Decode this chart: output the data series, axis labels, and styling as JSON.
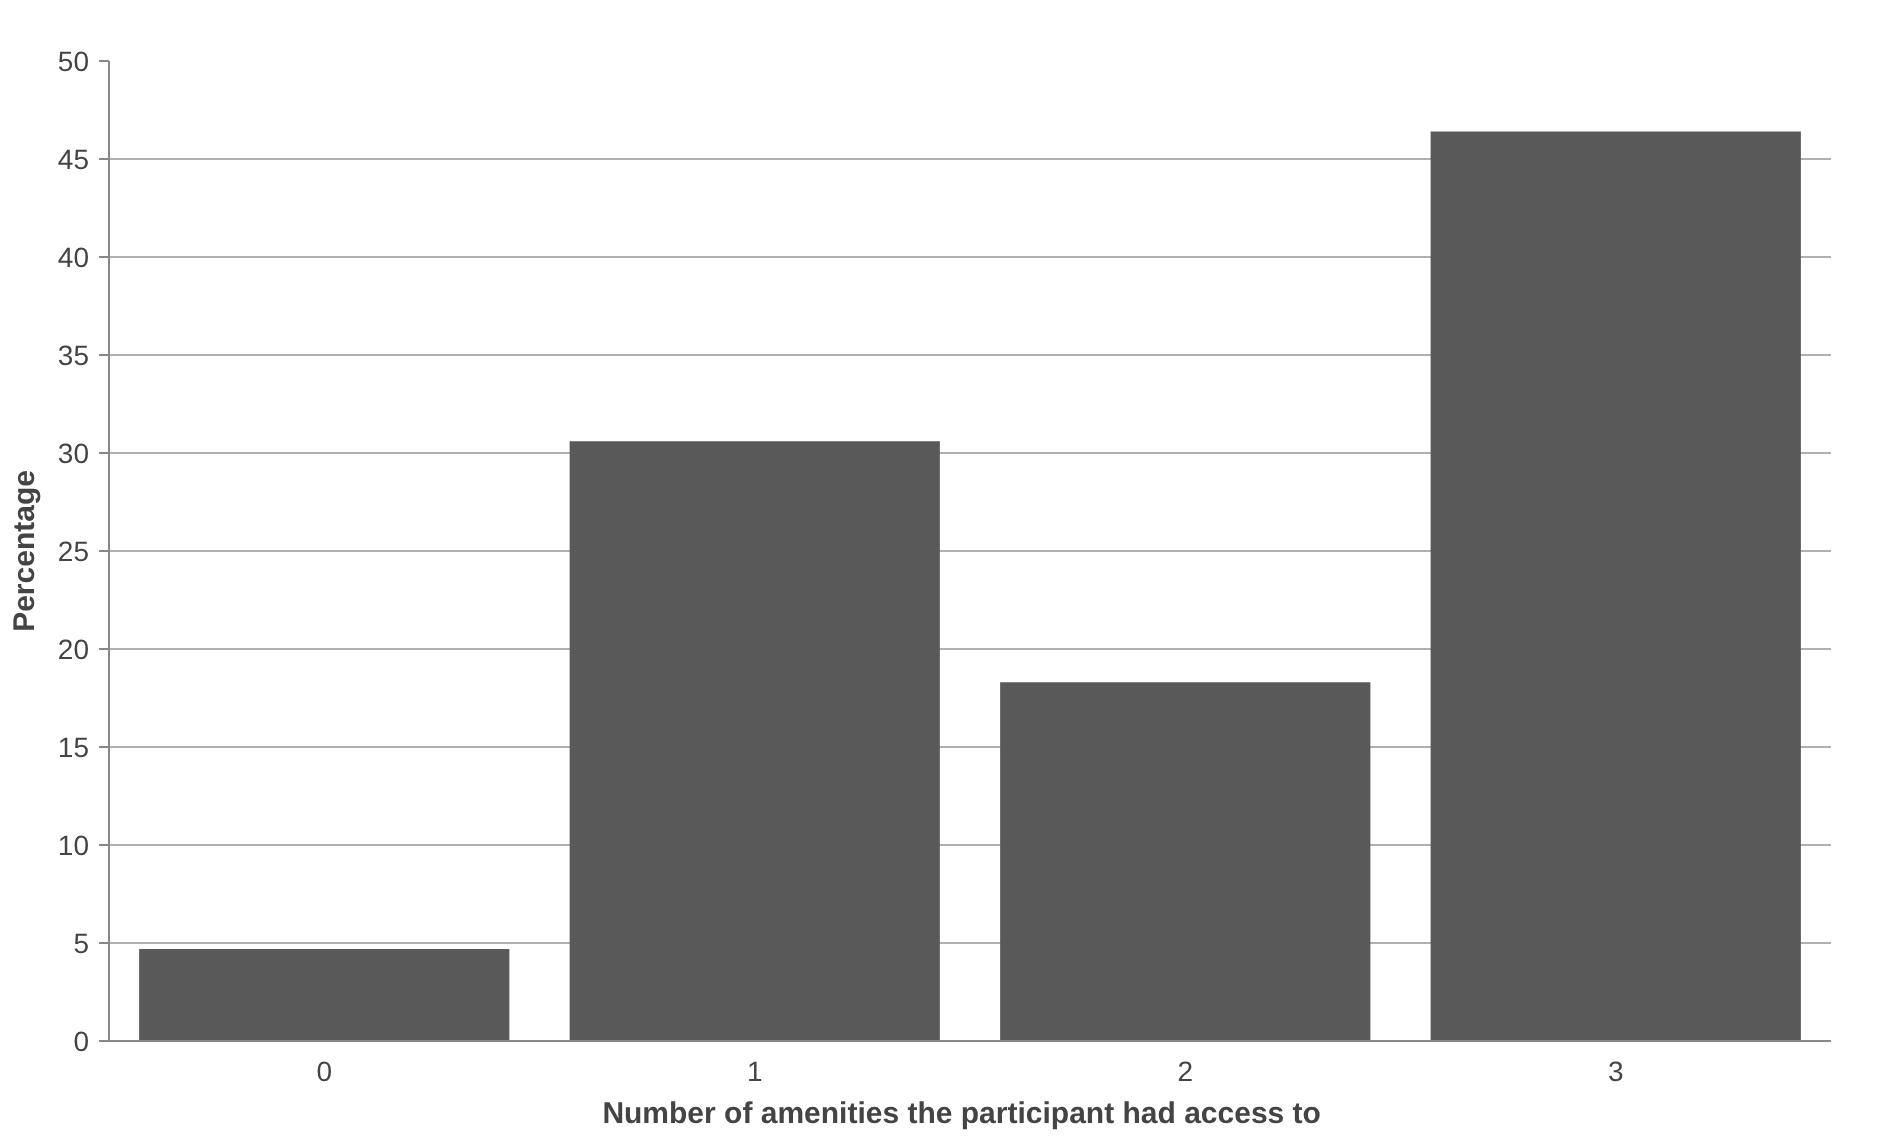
{
  "chart_data": {
    "type": "bar",
    "xlabel": "Number of amenities the participant  had access  to",
    "ylabel": "Percentage",
    "categories": [
      "0",
      "1",
      "2",
      "3"
    ],
    "values": [
      4.7,
      30.6,
      18.3,
      46.4
    ],
    "color": "#595959",
    "ylim": [
      0,
      50
    ],
    "yticks": [
      0,
      5,
      10,
      15,
      20,
      25,
      30,
      35,
      40,
      45,
      50
    ],
    "grid": "y"
  }
}
